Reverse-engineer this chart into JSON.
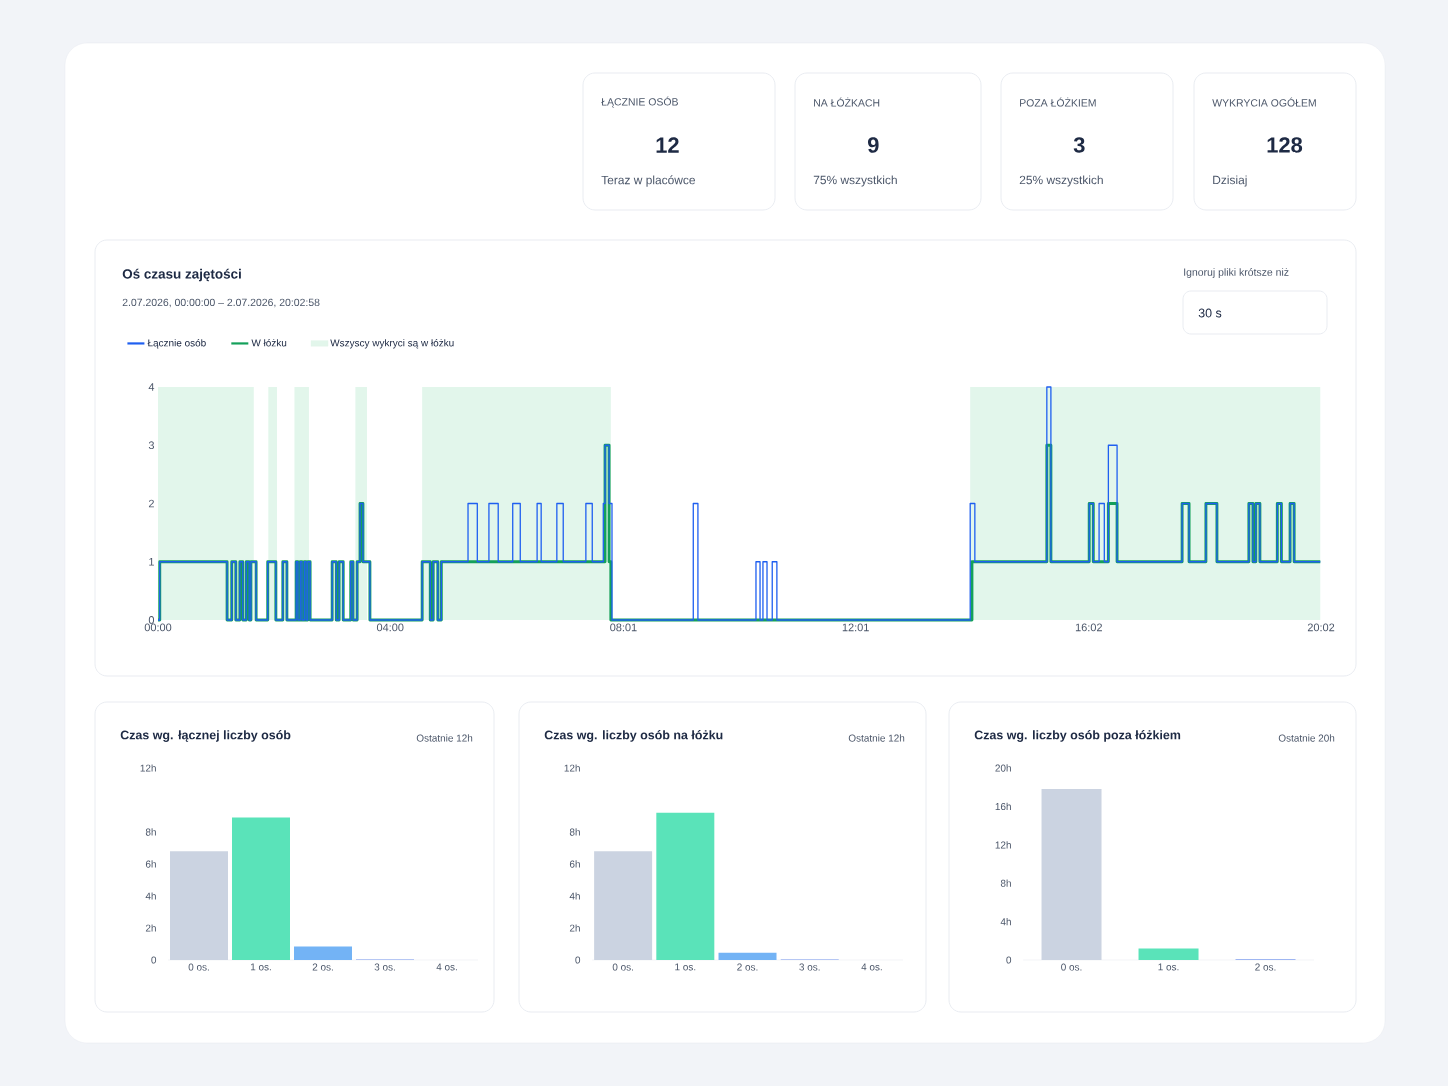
{
  "chart_data": [
    {
      "type": "other",
      "annotations": [
        "ŁĄCZNIE OSÓB",
        "12",
        "Teraz w placówce",
        "NA ŁÓŻKACH",
        "9",
        "75% wszystkich",
        "POZA ŁÓŻKIEM",
        "3",
        "25% wszystkich",
        "WYKRYCIA OGÓŁEM",
        "128",
        "Dzisiaj"
      ]
    },
    {
      "type": "step",
      "title": "Oś czasu zajętości",
      "subtitle": "2.07.2026, 00:00:00 – 2.07.2026, 20:02:58",
      "annotations": [
        "Ignoruj pliki krótsze niż",
        "30 s"
      ],
      "legend": "top left",
      "series": [
        {
          "name": "Łącznie osób",
          "color": "#1f5ff0",
          "x": [
            0,
            0.03,
            1.19,
            1.27,
            1.34,
            1.41,
            1.46,
            1.52,
            1.57,
            1.6,
            1.69,
            1.89,
            2.03,
            2.15,
            2.22,
            2.38,
            2.41,
            2.45,
            2.48,
            2.52,
            2.55,
            2.58,
            2.62,
            3.0,
            3.07,
            3.12,
            3.19,
            3.32,
            3.36,
            3.43,
            3.48,
            3.53,
            3.65,
            4.55,
            4.69,
            4.74,
            4.82,
            4.88,
            5.34,
            5.5,
            5.7,
            5.86,
            6.11,
            6.24,
            6.53,
            6.6,
            6.87,
            6.98,
            7.37,
            7.48,
            7.67,
            7.7,
            7.77,
            7.82,
            9.22,
            9.3,
            10.3,
            10.37,
            10.42,
            10.49,
            10.58,
            10.66,
            13.99,
            14.07,
            15.31,
            15.38,
            16.04,
            16.11,
            16.21,
            16.3,
            16.37,
            16.52,
            17.64,
            17.76,
            18.05,
            18.24,
            18.79,
            18.86,
            18.91,
            18.98,
            19.28,
            19.35,
            19.5,
            19.57,
            20.02
          ],
          "values": [
            0,
            1,
            0,
            1,
            0,
            1,
            0,
            1,
            0,
            1,
            0,
            1,
            0,
            1,
            0,
            1,
            0,
            1,
            0,
            1,
            0,
            1,
            0,
            1,
            0,
            1,
            0,
            1,
            0,
            1,
            2,
            1,
            0,
            1,
            0,
            1,
            0,
            1,
            2,
            1,
            2,
            1,
            2,
            1,
            2,
            1,
            2,
            1,
            2,
            1,
            2,
            3,
            2,
            0,
            2,
            0,
            1,
            0,
            1,
            0,
            1,
            0,
            2,
            1,
            4,
            1,
            2,
            1,
            2,
            1,
            3,
            1,
            2,
            1,
            2,
            1,
            2,
            1,
            2,
            1,
            2,
            1,
            2,
            1,
            1
          ]
        },
        {
          "name": "W łóżku",
          "color": "#14a05a",
          "x": [
            0,
            0.03,
            1.19,
            1.27,
            1.34,
            1.41,
            1.46,
            1.52,
            1.57,
            1.6,
            1.69,
            1.89,
            2.03,
            2.15,
            2.22,
            2.38,
            2.41,
            2.45,
            2.48,
            2.52,
            2.55,
            2.58,
            2.62,
            3.0,
            3.07,
            3.12,
            3.19,
            3.32,
            3.36,
            3.43,
            3.48,
            3.53,
            3.65,
            4.55,
            4.69,
            4.74,
            4.82,
            4.88,
            7.7,
            7.77,
            7.8,
            14.02,
            15.31,
            15.38,
            16.04,
            16.11,
            16.37,
            16.52,
            17.64,
            17.76,
            18.05,
            18.24,
            18.79,
            18.86,
            18.91,
            18.98,
            19.28,
            19.35,
            19.5,
            19.57,
            20.02
          ],
          "values": [
            0,
            1,
            0,
            1,
            0,
            1,
            0,
            1,
            0,
            1,
            0,
            1,
            0,
            1,
            0,
            1,
            0,
            1,
            0,
            1,
            0,
            1,
            0,
            1,
            0,
            1,
            0,
            1,
            0,
            1,
            2,
            1,
            0,
            1,
            0,
            1,
            0,
            1,
            3,
            1,
            0,
            1,
            3,
            1,
            2,
            1,
            2,
            1,
            2,
            1,
            2,
            1,
            2,
            1,
            2,
            1,
            2,
            1,
            2,
            1,
            1
          ]
        }
      ],
      "bands": [
        {
          "axis": "x",
          "from": 0,
          "to": 1.65,
          "label": "Wszyscy wykryci są w łóżku",
          "color": "#e2f6eb"
        },
        {
          "axis": "x",
          "from": 1.9,
          "to": 2.05,
          "color": "#e2f6eb"
        },
        {
          "axis": "x",
          "from": 2.35,
          "to": 2.6,
          "color": "#e2f6eb"
        },
        {
          "axis": "x",
          "from": 3.4,
          "to": 3.6,
          "color": "#e2f6eb"
        },
        {
          "axis": "x",
          "from": 4.55,
          "to": 7.8,
          "color": "#e2f6eb"
        },
        {
          "axis": "x",
          "from": 13.99,
          "to": 20.02,
          "color": "#e2f6eb"
        }
      ],
      "xlim": [
        0,
        20.033
      ],
      "xticks": [
        {
          "value": 0,
          "label": "00:00"
        },
        {
          "value": 4,
          "label": "04:00"
        },
        {
          "value": 8.017,
          "label": "08:01"
        },
        {
          "value": 12.017,
          "label": "12:01"
        },
        {
          "value": 16.033,
          "label": "16:02"
        },
        {
          "value": 20.033,
          "label": "20:02"
        }
      ],
      "ylim": [
        0,
        4
      ],
      "yticks": [
        0,
        1,
        2,
        3,
        4
      ]
    },
    {
      "type": "bar",
      "title": "Czas wg. łącznej liczby osób",
      "subtitle": "Ostatnie 12h",
      "categories": [
        "0 os.",
        "1 os.",
        "2 os.",
        "3 os.",
        "4 os."
      ],
      "values": [
        6.8,
        8.9,
        0.85,
        0.05,
        null
      ],
      "colors": [
        "#cbd3e1",
        "#5ae3b9",
        "#73b3f5",
        "#9fb6f2",
        "#c9d6f5"
      ],
      "ylim": [
        0,
        12
      ],
      "yticks": [
        0,
        {
          "value": 2,
          "label": "2h"
        },
        {
          "value": 4,
          "label": "4h"
        },
        {
          "value": 6,
          "label": "6h"
        },
        {
          "value": 8,
          "label": "8h"
        },
        {
          "value": 12,
          "label": "12h"
        }
      ]
    },
    {
      "type": "bar",
      "title": "Czas wg. liczby osób na łóżku",
      "subtitle": "Ostatnie 12h",
      "categories": [
        "0 os.",
        "1 os.",
        "2 os.",
        "3 os.",
        "4 os."
      ],
      "values": [
        6.8,
        9.2,
        0.45,
        0.05,
        null
      ],
      "colors": [
        "#cbd3e1",
        "#5ae3b9",
        "#73b3f5",
        "#9fb6f2",
        "#c9d6f5"
      ],
      "ylim": [
        0,
        12
      ],
      "yticks": [
        0,
        {
          "value": 2,
          "label": "2h"
        },
        {
          "value": 4,
          "label": "4h"
        },
        {
          "value": 6,
          "label": "6h"
        },
        {
          "value": 8,
          "label": "8h"
        },
        {
          "value": 12,
          "label": "12h"
        }
      ]
    },
    {
      "type": "bar",
      "title": "Czas wg. liczby osób poza łóżkiem",
      "subtitle": "Ostatnie 20h",
      "categories": [
        "0 os.",
        "1 os.",
        "2 os."
      ],
      "values": [
        17.8,
        1.2,
        0.1
      ],
      "colors": [
        "#cbd3e1",
        "#5ae3b9",
        "#9fb6f2"
      ],
      "ylim": [
        0,
        20
      ],
      "yticks": [
        0,
        {
          "value": 4,
          "label": "4h"
        },
        {
          "value": 8,
          "label": "8h"
        },
        {
          "value": 12,
          "label": "12h"
        },
        {
          "value": 16,
          "label": "16h"
        },
        {
          "value": 20,
          "label": "20h"
        }
      ]
    }
  ]
}
